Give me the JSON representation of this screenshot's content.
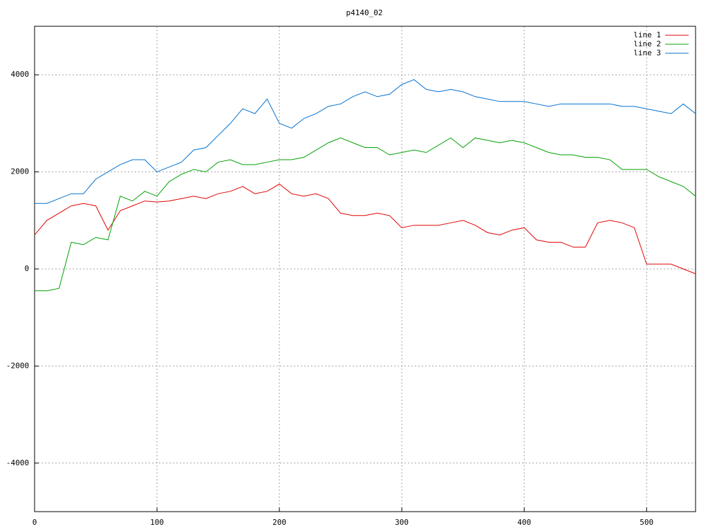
{
  "chart_data": {
    "type": "line",
    "title": "p4140_02",
    "x": [
      0,
      10,
      20,
      30,
      40,
      50,
      60,
      70,
      80,
      90,
      100,
      110,
      120,
      130,
      140,
      150,
      160,
      170,
      180,
      190,
      200,
      210,
      220,
      230,
      240,
      250,
      260,
      270,
      280,
      290,
      300,
      310,
      320,
      330,
      340,
      350,
      360,
      370,
      380,
      390,
      400,
      410,
      420,
      430,
      440,
      450,
      460,
      470,
      480,
      490,
      500,
      510,
      520,
      530,
      540
    ],
    "series": [
      {
        "name": "line 1",
        "color": "#e00000",
        "values": [
          700,
          1000,
          1150,
          1300,
          1350,
          1300,
          800,
          1200,
          1300,
          1400,
          1380,
          1400,
          1450,
          1500,
          1450,
          1550,
          1600,
          1700,
          1550,
          1600,
          1750,
          1550,
          1500,
          1550,
          1450,
          1150,
          1100,
          1100,
          1150,
          1100,
          850,
          900,
          900,
          900,
          950,
          1000,
          900,
          750,
          700,
          800,
          850,
          600,
          550,
          550,
          450,
          450,
          950,
          1000,
          950,
          850,
          100,
          100,
          100,
          0,
          -100
        ]
      },
      {
        "name": "line 2",
        "color": "#00a000",
        "values": [
          -450,
          -450,
          -400,
          550,
          500,
          650,
          600,
          1500,
          1400,
          1600,
          1500,
          1800,
          1950,
          2050,
          2000,
          2200,
          2250,
          2150,
          2150,
          2200,
          2250,
          2250,
          2300,
          2450,
          2600,
          2700,
          2600,
          2500,
          2500,
          2350,
          2400,
          2450,
          2400,
          2550,
          2700,
          2500,
          2700,
          2650,
          2600,
          2650,
          2600,
          2500,
          2400,
          2350,
          2350,
          2300,
          2300,
          2250,
          2050,
          2050,
          2050,
          1900,
          1800,
          1700,
          1500
        ]
      },
      {
        "name": "line 3",
        "color": "#0070d0",
        "values": [
          1350,
          1350,
          1450,
          1550,
          1550,
          1850,
          2000,
          2150,
          2250,
          2250,
          2000,
          2100,
          2200,
          2450,
          2500,
          2750,
          3000,
          3300,
          3200,
          3500,
          3000,
          2900,
          3100,
          3200,
          3350,
          3400,
          3550,
          3650,
          3550,
          3600,
          3800,
          3900,
          3700,
          3650,
          3700,
          3650,
          3550,
          3500,
          3450,
          3450,
          3450,
          3400,
          3350,
          3400,
          3400,
          3400,
          3400,
          3400,
          3350,
          3350,
          3300,
          3250,
          3200,
          3400,
          3200
        ]
      }
    ],
    "xlim": [
      0,
      540
    ],
    "ylim": [
      -5000,
      5000
    ],
    "xticks": [
      0,
      100,
      200,
      300,
      400,
      500
    ],
    "yticks": [
      -4000,
      -2000,
      0,
      2000,
      4000
    ],
    "grid": true,
    "legend": "top-right"
  }
}
